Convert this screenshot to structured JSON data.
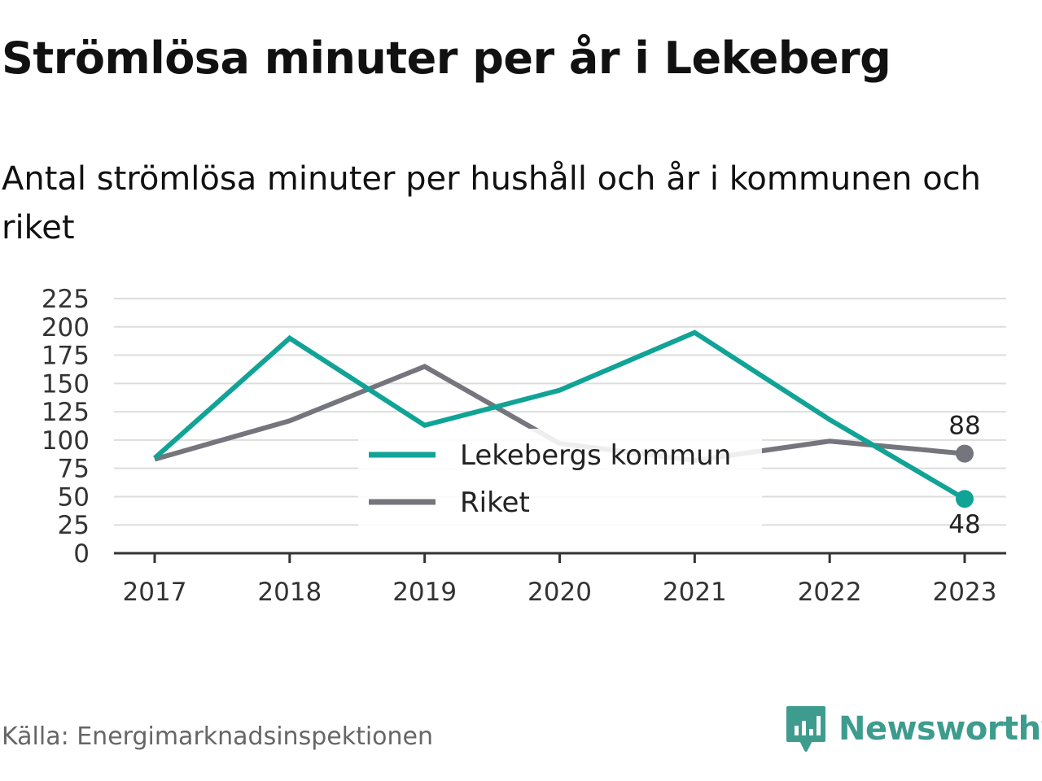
{
  "title": "Strömlösa minuter per år i Lekeberg",
  "subtitle": "Antal strömlösa minuter per hushåll och år i kommunen och riket",
  "source": "Källa: Energimarknadsinspektionen",
  "brand": {
    "name": "Newsworthy",
    "icon": "newsworthy-logo-icon",
    "color": "#3d9c8e"
  },
  "chart_data": {
    "type": "line",
    "categories": [
      "2017",
      "2018",
      "2019",
      "2020",
      "2021",
      "2022",
      "2023"
    ],
    "series": [
      {
        "name": "Lekebergs kommun",
        "color": "#10a396",
        "values": [
          84,
          190,
          113,
          144,
          195,
          118,
          48
        ],
        "end_label": "48"
      },
      {
        "name": "Riket",
        "color": "#75757d",
        "values": [
          83,
          117,
          165,
          97,
          82,
          99,
          88
        ],
        "end_label": "88"
      }
    ],
    "ylim": [
      0,
      225
    ],
    "yticks": [
      "0",
      "25",
      "50",
      "75",
      "100",
      "125",
      "150",
      "175",
      "200",
      "225"
    ],
    "grid": true,
    "legend_position": "center-bottom"
  }
}
